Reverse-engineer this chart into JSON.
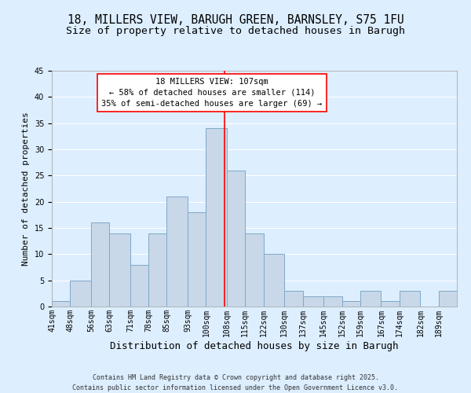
{
  "title": "18, MILLERS VIEW, BARUGH GREEN, BARNSLEY, S75 1FU",
  "subtitle": "Size of property relative to detached houses in Barugh",
  "xlabel": "Distribution of detached houses by size in Barugh",
  "ylabel": "Number of detached properties",
  "footer_line1": "Contains HM Land Registry data © Crown copyright and database right 2025.",
  "footer_line2": "Contains public sector information licensed under the Open Government Licence v3.0.",
  "bin_labels": [
    "41sqm",
    "48sqm",
    "56sqm",
    "63sqm",
    "71sqm",
    "78sqm",
    "85sqm",
    "93sqm",
    "100sqm",
    "108sqm",
    "115sqm",
    "122sqm",
    "130sqm",
    "137sqm",
    "145sqm",
    "152sqm",
    "159sqm",
    "167sqm",
    "174sqm",
    "182sqm",
    "189sqm"
  ],
  "bin_edges": [
    41,
    48,
    56,
    63,
    71,
    78,
    85,
    93,
    100,
    108,
    115,
    122,
    130,
    137,
    145,
    152,
    159,
    167,
    174,
    182,
    189,
    196
  ],
  "counts": [
    1,
    5,
    16,
    14,
    8,
    14,
    21,
    18,
    34,
    26,
    14,
    10,
    3,
    2,
    2,
    1,
    3,
    1,
    3,
    0,
    3
  ],
  "bar_color": "#c8d8e8",
  "bar_edge_color": "#7fa8c8",
  "property_line_x": 107,
  "property_line_color": "red",
  "annotation_title": "18 MILLERS VIEW: 107sqm",
  "annotation_line1": "← 58% of detached houses are smaller (114)",
  "annotation_line2": "35% of semi-detached houses are larger (69) →",
  "annotation_box_color": "white",
  "annotation_box_edge_color": "red",
  "ylim": [
    0,
    45
  ],
  "yticks": [
    0,
    5,
    10,
    15,
    20,
    25,
    30,
    35,
    40,
    45
  ],
  "background_color": "#ddeeff",
  "grid_color": "white",
  "title_fontsize": 10.5,
  "subtitle_fontsize": 9.5,
  "xlabel_fontsize": 9,
  "ylabel_fontsize": 8,
  "tick_fontsize": 7,
  "annotation_fontsize": 7.5,
  "footer_fontsize": 6
}
